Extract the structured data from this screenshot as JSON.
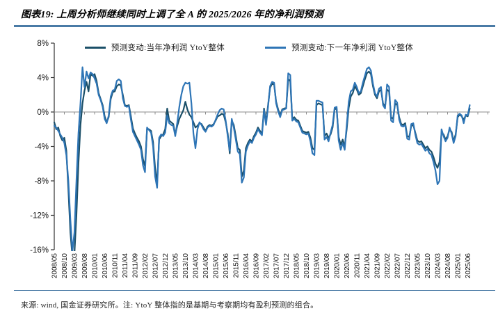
{
  "header": {
    "title": "图表19: 上周分析师继续同时上调了全 A 的 2025/2026 年的净利润预测"
  },
  "legend": [
    {
      "label": "预测变动:当年净利润 YtoY整体",
      "color": "#1b4f68"
    },
    {
      "label": "预测变动:下一年净利润 YtoY整体",
      "color": "#2e75b6"
    }
  ],
  "footer": {
    "note": "来源: wind, 国金证券研究所。注: YtoY 整体指的是基期与考察期均有盈利预测的组合。"
  },
  "chart_data": {
    "type": "line",
    "title": "",
    "xlabel": "",
    "ylabel": "",
    "x_unit": "month",
    "x_start": "2008/05",
    "x_end": "2025/07",
    "ylim": [
      -16,
      8
    ],
    "grid": false,
    "legend_position": "top",
    "zero_line": true,
    "y_tick_labels": [
      "8%",
      "4%",
      "0%",
      "-4%",
      "-8%",
      "-12%",
      "-16%"
    ],
    "x_tick_labels": [
      "2008/05",
      "2008/10",
      "2009/03",
      "2009/08",
      "2010/01",
      "2010/06",
      "2010/11",
      "2011/04",
      "2011/09",
      "2012/02",
      "2012/07",
      "2012/12",
      "2013/05",
      "2013/10",
      "2014/03",
      "2014/08",
      "2015/01",
      "2015/06",
      "2015/11",
      "2016/04",
      "2016/09",
      "2017/02",
      "2017/07",
      "2017/12",
      "2018/05",
      "2018/10",
      "2019/03",
      "2019/08",
      "2020/01",
      "2020/06",
      "2020/11",
      "2021/04",
      "2021/09",
      "2022/02",
      "2022/07",
      "2022/12",
      "2023/05",
      "2023/10",
      "2024/03",
      "2024/08",
      "2025/01",
      "2025/06"
    ],
    "x_tick_interval_months": 5,
    "series": [
      {
        "name": "预测变动:当年净利润 YtoY整体",
        "color": "#1b4f68",
        "values": [
          -1.2,
          -2.0,
          -1.8,
          -2.8,
          -3.3,
          -3.0,
          -4.5,
          -9.0,
          -14.0,
          -16.8,
          -16.5,
          -12.0,
          -6.0,
          -1.5,
          1.0,
          2.5,
          3.5,
          2.4,
          4.4,
          4.2,
          4.4,
          3.6,
          2.2,
          1.5,
          0.8,
          -0.5,
          -1.2,
          -0.6,
          1.5,
          2.3,
          2.4,
          3.0,
          3.2,
          3.1,
          2.0,
          0.8,
          0.7,
          0.8,
          -0.5,
          -1.9,
          -2.5,
          -3.0,
          -3.4,
          -4.0,
          -5.5,
          -6.3,
          -2.0,
          -2.0,
          -2.2,
          -3.5,
          -6.5,
          -8.3,
          -3.2,
          -2.8,
          -2.6,
          -2.0,
          0.4,
          -1.0,
          -1.2,
          -1.4,
          -2.6,
          -1.6,
          -0.8,
          -0.3,
          0.2,
          1.2,
          0.3,
          -0.3,
          -0.6,
          -1.2,
          -1.8,
          -1.6,
          -1.3,
          -1.4,
          -1.8,
          -2.2,
          -1.7,
          -1.5,
          -1.6,
          -1.4,
          -1.0,
          -0.5,
          -0.4,
          -0.2,
          -0.3,
          -1.2,
          -2.5,
          -4.8,
          -1.0,
          -1.5,
          -2.8,
          -4.2,
          -4.4,
          -7.5,
          -6.8,
          -4.2,
          -3.6,
          -3.2,
          -3.4,
          -2.8,
          -2.4,
          -1.8,
          -2.2,
          -2.5,
          0.4,
          -1.2,
          0.8,
          2.8,
          3.3,
          3.2,
          1.2,
          0.3,
          -0.4,
          0.3,
          0.4,
          0.5,
          3.8,
          3.6,
          -0.8,
          -0.6,
          -0.9,
          -1.0,
          -1.6,
          -2.2,
          -2.3,
          -2.4,
          -2.3,
          -3.0,
          -4.2,
          -4.4,
          0.8,
          1.0,
          0.9,
          0.8,
          -2.8,
          -2.5,
          -3.0,
          -2.6,
          -1.8,
          0.3,
          0.4,
          -2.9,
          -3.8,
          -3.2,
          -4.0,
          -2.0,
          0.5,
          1.8,
          2.2,
          3.0,
          2.6,
          2.0,
          2.2,
          3.0,
          3.8,
          4.5,
          4.7,
          4.4,
          3.0,
          2.0,
          1.6,
          2.4,
          2.6,
          1.0,
          0.6,
          2.6,
          2.4,
          -0.6,
          -0.8,
          1.0,
          0.8,
          -0.6,
          -1.4,
          -1.5,
          -1.3,
          -2.8,
          -2.9,
          -1.6,
          -1.5,
          -2.4,
          -3.3,
          -3.5,
          -3.4,
          -3.8,
          -4.2,
          -4.0,
          -4.4,
          -4.6,
          -5.2,
          -6.0,
          -6.5,
          -5.8,
          -2.4,
          -2.6,
          -3.2,
          -2.8,
          -2.0,
          -2.3,
          -3.4,
          -2.6,
          -0.6,
          -0.3,
          -0.5,
          -0.9,
          -0.4,
          -0.5,
          0.4
        ]
      },
      {
        "name": "预测变动:下一年净利润 YtoY整体",
        "color": "#2e75b6",
        "values": [
          -1.6,
          -1.8,
          -2.2,
          -2.6,
          -3.0,
          -3.6,
          -5.0,
          -8.0,
          -12.5,
          -16.2,
          -14.0,
          -8.0,
          -2.5,
          1.0,
          5.2,
          2.9,
          4.7,
          3.9,
          4.6,
          4.4,
          3.9,
          3.3,
          2.0,
          1.4,
          0.6,
          -0.8,
          -1.3,
          -0.4,
          1.8,
          2.5,
          2.6,
          3.6,
          3.8,
          3.6,
          1.6,
          0.7,
          0.6,
          0.7,
          -0.9,
          -2.3,
          -2.8,
          -3.3,
          -3.8,
          -4.4,
          -6.2,
          -7.0,
          -1.8,
          -2.1,
          -2.4,
          -4.0,
          -7.5,
          -8.8,
          -3.0,
          -2.6,
          -2.8,
          -2.4,
          -0.4,
          -1.3,
          -1.5,
          -1.6,
          -2.8,
          -1.2,
          0.6,
          2.0,
          3.0,
          3.4,
          3.3,
          3.4,
          1.0,
          -2.5,
          -4.2,
          -2.0,
          -1.2,
          -1.5,
          -2.0,
          -2.3,
          -1.8,
          -1.6,
          -1.7,
          -1.5,
          -0.9,
          -0.3,
          0.2,
          0.4,
          0.3,
          -1.0,
          -2.8,
          -4.5,
          -0.8,
          -1.8,
          -3.2,
          -4.6,
          -4.9,
          -8.2,
          -7.6,
          -4.6,
          -3.9,
          -3.4,
          -3.6,
          -3.0,
          -2.6,
          -2.0,
          -2.4,
          -2.7,
          0.2,
          -1.5,
          0.6,
          3.0,
          3.5,
          3.4,
          1.0,
          0.1,
          -0.6,
          0.2,
          0.3,
          0.4,
          4.5,
          4.3,
          -1.0,
          -0.8,
          -1.1,
          -1.2,
          -1.8,
          -2.4,
          -2.5,
          -2.6,
          -2.5,
          -3.4,
          -4.8,
          -5.0,
          1.3,
          1.3,
          1.2,
          1.1,
          -3.2,
          -2.9,
          -3.4,
          -2.4,
          -1.5,
          0.5,
          0.6,
          -3.3,
          -4.4,
          -3.6,
          -4.4,
          -1.5,
          1.2,
          2.4,
          2.6,
          3.4,
          2.9,
          2.2,
          2.4,
          3.4,
          4.2,
          5.0,
          5.2,
          4.8,
          3.3,
          2.2,
          1.8,
          2.7,
          2.9,
          0.8,
          0.4,
          3.2,
          2.9,
          -1.0,
          -1.2,
          1.4,
          1.1,
          -0.9,
          -1.6,
          -1.7,
          -1.5,
          -3.1,
          -3.2,
          -1.4,
          -1.3,
          -2.6,
          -3.6,
          -3.8,
          -3.7,
          -4.1,
          -4.5,
          -4.3,
          -4.8,
          -5.0,
          -5.8,
          -6.8,
          -8.4,
          -8.0,
          -2.0,
          -2.8,
          -3.4,
          -3.0,
          -1.8,
          -2.5,
          -3.6,
          -2.8,
          -0.4,
          -0.2,
          -0.4,
          -1.3,
          -0.3,
          -0.4,
          0.8
        ]
      }
    ]
  }
}
